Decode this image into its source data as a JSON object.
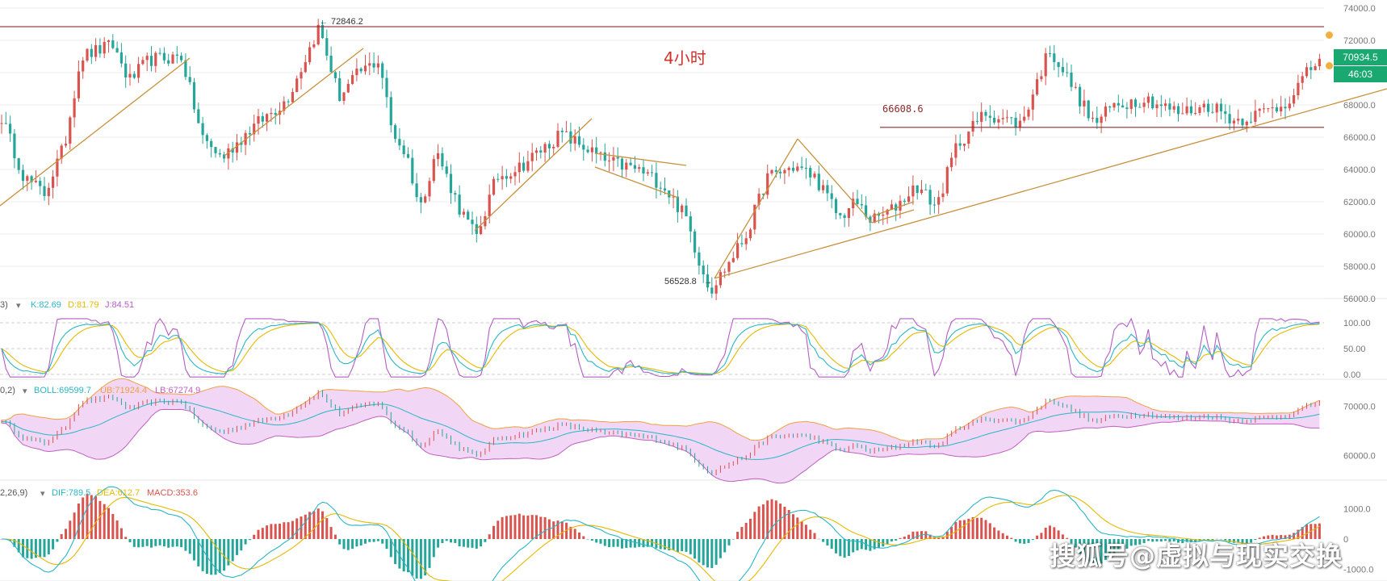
{
  "colors": {
    "up": "#d9534f",
    "down": "#26a69a",
    "trendline": "#c8903c",
    "hline": "#8b2a2a",
    "k": "#29b6c5",
    "d": "#e6b800",
    "j": "#b45cc4",
    "boll_mid": "#29b6c5",
    "boll_ub": "#f0a040",
    "boll_lb": "#c060c0",
    "boll_fill": "#f1d7f5",
    "dif": "#29b6c5",
    "dea": "#e6b800",
    "price_tag": "#18a870",
    "grid": "#ededed"
  },
  "header": {
    "timeframe": "4小时"
  },
  "price_tags": {
    "last_price": "70934.5",
    "countdown": "46:03"
  },
  "annotations": {
    "high": "72846.2",
    "low": "56528.8",
    "resistance": "66608.6"
  },
  "indicators": {
    "kdj": {
      "prefix": "3)",
      "k": "K:82.69",
      "d": "D:81.79",
      "j": "J:84.51"
    },
    "boll": {
      "prefix": "0,2)",
      "mid": "BOLL:69599.7",
      "ub": "UB:71924.4",
      "lb": "LB:67274.9"
    },
    "macd": {
      "prefix": "2,26,9)",
      "dif": "DIF:789.5",
      "dea": "DEA:612.7",
      "macd": "MACD:353.6"
    }
  },
  "watermark": "搜狐号@虚拟与现实交换",
  "chart_data": [
    {
      "type": "candlestick",
      "ylim": [
        55500,
        74500
      ],
      "yticks": [
        "74000.0",
        "72000.0",
        "70000.0",
        "68000.0",
        "66000.0",
        "64000.0",
        "62000.0",
        "60000.0",
        "58000.0",
        "56000.0"
      ],
      "horizontal_lines": [
        72846.2,
        66608.6
      ],
      "close_path": [
        [
          0,
          67500
        ],
        [
          30,
          63500
        ],
        [
          55,
          62500
        ],
        [
          80,
          65500
        ],
        [
          100,
          71000
        ],
        [
          140,
          71700
        ],
        [
          160,
          69500
        ],
        [
          185,
          70800
        ],
        [
          225,
          71000
        ],
        [
          250,
          66000
        ],
        [
          275,
          64700
        ],
        [
          310,
          66500
        ],
        [
          355,
          68300
        ],
        [
          375,
          70500
        ],
        [
          395,
          72846.2
        ],
        [
          420,
          68500
        ],
        [
          445,
          70000
        ],
        [
          470,
          70800
        ],
        [
          485,
          66500
        ],
        [
          505,
          64700
        ],
        [
          520,
          61500
        ],
        [
          540,
          65200
        ],
        [
          570,
          61500
        ],
        [
          590,
          59800
        ],
        [
          615,
          63500
        ],
        [
          645,
          64200
        ],
        [
          695,
          66200
        ],
        [
          730,
          65200
        ],
        [
          750,
          64500
        ],
        [
          790,
          64000
        ],
        [
          820,
          63100
        ],
        [
          850,
          61000
        ],
        [
          865,
          58500
        ],
        [
          880,
          56528.8
        ],
        [
          900,
          58000
        ],
        [
          925,
          60000
        ],
        [
          950,
          63500
        ],
        [
          985,
          64200
        ],
        [
          1010,
          63500
        ],
        [
          1040,
          61000
        ],
        [
          1060,
          62000
        ],
        [
          1080,
          60800
        ],
        [
          1105,
          61500
        ],
        [
          1135,
          63000
        ],
        [
          1160,
          61700
        ],
        [
          1185,
          65500
        ],
        [
          1220,
          67500
        ],
        [
          1265,
          66800
        ],
        [
          1300,
          71500
        ],
        [
          1330,
          69000
        ],
        [
          1355,
          66800
        ],
        [
          1380,
          68000
        ],
        [
          1420,
          68400
        ],
        [
          1460,
          67500
        ],
        [
          1500,
          68000
        ],
        [
          1530,
          67000
        ],
        [
          1560,
          67500
        ],
        [
          1590,
          68000
        ],
        [
          1620,
          70000
        ],
        [
          1635,
          70934.5
        ]
      ]
    },
    {
      "type": "line",
      "name": "KDJ",
      "ylim": [
        0,
        100
      ],
      "yticks": [
        "100.00",
        "50.00",
        "0.00"
      ],
      "latest": {
        "K": 82.69,
        "D": 81.79,
        "J": 84.51
      }
    },
    {
      "type": "line",
      "name": "BOLL",
      "ylim": [
        55000,
        73000
      ],
      "yticks": [
        "70000.0",
        "60000.0"
      ],
      "latest": {
        "BOLL": 69599.7,
        "UB": 71924.4,
        "LB": 67274.9
      }
    },
    {
      "type": "bar",
      "name": "MACD",
      "ylim": [
        -1600,
        1600
      ],
      "yticks": [
        "1000.0",
        "0",
        "-1000.0"
      ],
      "latest": {
        "DIF": 789.5,
        "DEA": 612.7,
        "MACD": 353.6
      }
    }
  ]
}
